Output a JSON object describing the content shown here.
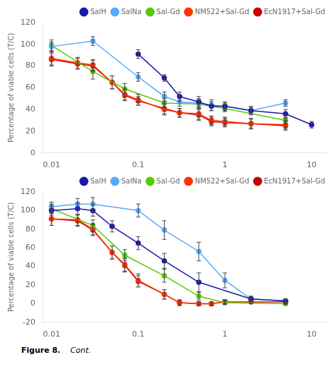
{
  "chart_data": [
    {
      "type": "line",
      "log": "x",
      "grid": false,
      "legend": "upper right",
      "marker": "o",
      "line_style": "solid",
      "ylabel": "Percentage of viable cells (T/C)",
      "xlim": [
        0.008,
        15
      ],
      "xticks": [
        0.01,
        0.1,
        1,
        10
      ],
      "ylim": [
        0,
        120
      ],
      "yticks": [
        0,
        20,
        40,
        60,
        80,
        100,
        120
      ],
      "series": [
        {
          "name": "SalH",
          "color": "#1a1aaa",
          "x": [
            0.1,
            0.2,
            0.3,
            0.5,
            0.7,
            1.0,
            2.0,
            5.0,
            10.0
          ],
          "values": [
            91,
            69,
            52,
            47,
            43,
            43,
            39,
            36,
            26
          ],
          "yerr": [
            4,
            3,
            4,
            5,
            4,
            3,
            3,
            4,
            3
          ]
        },
        {
          "name": "SalNa",
          "color": "#55aaff",
          "x": [
            0.01,
            0.03,
            0.1,
            0.2,
            0.3,
            0.5,
            0.7,
            1.0,
            2.0,
            5.0
          ],
          "values": [
            98,
            103,
            70,
            52,
            47,
            46,
            44,
            43,
            39,
            46
          ],
          "yerr": [
            4,
            4,
            4,
            4,
            4,
            4,
            5,
            4,
            4,
            3
          ]
        },
        {
          "name": "Sal-Gd",
          "color": "#55cc00",
          "x": [
            0.01,
            0.03,
            0.07,
            0.2,
            0.5,
            1.0,
            5.0
          ],
          "values": [
            99,
            75,
            59,
            46,
            45,
            41,
            30
          ],
          "yerr": [
            5,
            7,
            5,
            4,
            4,
            3,
            3
          ]
        },
        {
          "name": "NM522+Sal-Gd",
          "color": "#ff3300",
          "x": [
            0.01,
            0.02,
            0.03,
            0.05,
            0.07,
            0.1,
            0.2,
            0.3,
            0.5,
            0.7,
            1.0,
            2.0,
            5.0
          ],
          "values": [
            87,
            83,
            81,
            65,
            54,
            49,
            40,
            37,
            36,
            30,
            29,
            27,
            26
          ],
          "yerr": [
            6,
            5,
            5,
            6,
            5,
            5,
            5,
            4,
            5,
            4,
            4,
            5,
            4
          ]
        },
        {
          "name": "EcN1917+Sal-Gd",
          "color": "#cc0000",
          "x": [
            0.01,
            0.02,
            0.03,
            0.05,
            0.07,
            0.1,
            0.2,
            0.3,
            0.5,
            0.7,
            1.0,
            2.0,
            5.0
          ],
          "values": [
            86,
            82,
            80,
            65,
            53,
            48,
            41,
            37,
            35,
            29,
            28,
            27,
            25
          ],
          "yerr": [
            6,
            5,
            5,
            6,
            5,
            4,
            5,
            4,
            5,
            4,
            4,
            4,
            4
          ]
        }
      ]
    },
    {
      "type": "line",
      "log": "x",
      "grid": false,
      "legend": "upper right",
      "marker": "o",
      "line_style": "solid",
      "ylabel": "Percentage of viable cells (T/C)",
      "xlim": [
        0.008,
        15
      ],
      "xticks": [
        0.01,
        0.1,
        1,
        10
      ],
      "ylim": [
        -20,
        120
      ],
      "yticks": [
        -20,
        0,
        20,
        40,
        60,
        80,
        100,
        120
      ],
      "series": [
        {
          "name": "SalH",
          "color": "#1a1aaa",
          "x": [
            0.01,
            0.02,
            0.03,
            0.05,
            0.1,
            0.2,
            0.5,
            2.0,
            5.0
          ],
          "values": [
            100,
            102,
            100,
            83,
            65,
            46,
            23,
            5,
            3
          ],
          "yerr": [
            5,
            6,
            6,
            6,
            7,
            8,
            10,
            3,
            2
          ]
        },
        {
          "name": "SalNa",
          "color": "#55aaff",
          "x": [
            0.01,
            0.02,
            0.03,
            0.1,
            0.2,
            0.5,
            1.0,
            2.0,
            5.0
          ],
          "values": [
            104,
            107,
            107,
            100,
            79,
            56,
            25,
            5,
            3
          ],
          "yerr": [
            5,
            6,
            7,
            7,
            10,
            10,
            8,
            3,
            2
          ]
        },
        {
          "name": "Sal-Gd",
          "color": "#55cc00",
          "x": [
            0.01,
            0.03,
            0.07,
            0.2,
            0.5,
            1.0,
            5.0
          ],
          "values": [
            102,
            84,
            52,
            30,
            8,
            1,
            0
          ],
          "yerr": [
            5,
            6,
            6,
            7,
            4,
            2,
            1
          ]
        },
        {
          "name": "NM522+Sal-Gd",
          "color": "#ff3300",
          "x": [
            0.01,
            0.02,
            0.03,
            0.05,
            0.07,
            0.1,
            0.2,
            0.3,
            0.5,
            0.7,
            1.0,
            2.0,
            5.0
          ],
          "values": [
            91,
            90,
            80,
            55,
            42,
            25,
            10,
            1,
            0,
            0,
            2,
            2,
            2
          ],
          "yerr": [
            7,
            6,
            6,
            7,
            7,
            7,
            5,
            3,
            2,
            2,
            2,
            2,
            2
          ]
        },
        {
          "name": "EcN1917+Sal-Gd",
          "color": "#cc0000",
          "x": [
            0.01,
            0.02,
            0.03,
            0.05,
            0.07,
            0.1,
            0.2,
            0.3,
            0.5,
            0.7,
            1.0,
            2.0,
            5.0
          ],
          "values": [
            91,
            89,
            79,
            55,
            41,
            24,
            10,
            1,
            0,
            0,
            2,
            2,
            2
          ],
          "yerr": [
            7,
            6,
            6,
            7,
            7,
            6,
            5,
            3,
            2,
            2,
            2,
            2,
            2
          ]
        }
      ],
      "annotations": [
        "Figure 8.",
        "Cont."
      ]
    }
  ]
}
